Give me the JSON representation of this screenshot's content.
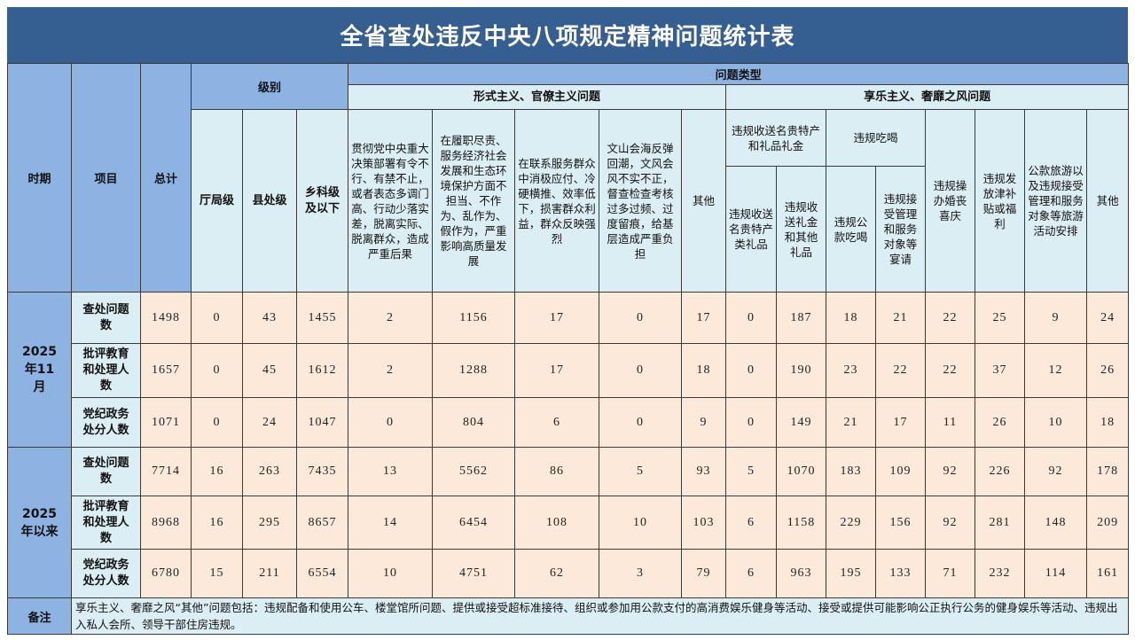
{
  "title": "全省查处违反中央八项规定精神问题统计表",
  "colors": {
    "title_bg": "#365f91",
    "header_bg": "#8db3e2",
    "subheader_bg": "#dbeef4",
    "cell_bg": "#fde9d9"
  },
  "header": {
    "period": "时期",
    "item": "项目",
    "total": "总计",
    "level": "级别",
    "level_cols": [
      "厅局级",
      "县处级",
      "乡科级及以下"
    ],
    "problem_type": "问题类型",
    "formalism": "形式主义、官僚主义问题",
    "formalism_cols": [
      "贯彻党中央重大决策部署有令不行、有禁不止，或者表态多调门高、行动少落实差，脱离实际、脱离群众，造成严重后果",
      "在履职尽责、服务经济社会发展和生态环境保护方面不担当、不作为、乱作为、假作为，严重影响高质量发展",
      "在联系服务群众中消极应付、冷硬横推、效率低下，损害群众利益，群众反映强烈",
      "文山会海反弹回潮，文风会风不实不正，督查检查考核过多过频、过度留痕，给基层造成严重负担",
      "其他"
    ],
    "hedonism": "享乐主义、奢靡之风问题",
    "gifts_group": "违规收送名贵特产和礼品礼金",
    "gifts_cols": [
      "违规收送名贵特产类礼品",
      "违规收送礼金和其他礼品"
    ],
    "dining_group": "违规吃喝",
    "dining_cols": [
      "违规公款吃喝",
      "违规接受管理和服务对象等宴请"
    ],
    "other_hedonism_cols": [
      "违规操办婚丧喜庆",
      "违规发放津补贴或福利",
      "公款旅游以及违规接受管理和服务对象等旅游活动安排",
      "其他"
    ]
  },
  "periods": [
    {
      "label": "2025年11月",
      "rows": [
        {
          "item": "查处问题数",
          "values": [
            "1498",
            "0",
            "43",
            "1455",
            "2",
            "1156",
            "17",
            "0",
            "17",
            "0",
            "187",
            "18",
            "21",
            "22",
            "25",
            "9",
            "24"
          ]
        },
        {
          "item": "批评教育和处理人数",
          "values": [
            "1657",
            "0",
            "45",
            "1612",
            "2",
            "1288",
            "17",
            "0",
            "18",
            "0",
            "190",
            "23",
            "22",
            "22",
            "37",
            "12",
            "26"
          ]
        },
        {
          "item": "党纪政务处分人数",
          "values": [
            "1071",
            "0",
            "24",
            "1047",
            "0",
            "804",
            "6",
            "0",
            "9",
            "0",
            "149",
            "21",
            "17",
            "11",
            "26",
            "10",
            "18"
          ]
        }
      ]
    },
    {
      "label": "2025年以来",
      "rows": [
        {
          "item": "查处问题数",
          "values": [
            "7714",
            "16",
            "263",
            "7435",
            "13",
            "5562",
            "86",
            "5",
            "93",
            "5",
            "1070",
            "183",
            "109",
            "92",
            "226",
            "92",
            "178"
          ]
        },
        {
          "item": "批评教育和处理人数",
          "values": [
            "8968",
            "16",
            "295",
            "8657",
            "14",
            "6454",
            "108",
            "10",
            "103",
            "6",
            "1158",
            "229",
            "156",
            "92",
            "281",
            "148",
            "209"
          ]
        },
        {
          "item": "党纪政务处分人数",
          "values": [
            "6780",
            "15",
            "211",
            "6554",
            "10",
            "4751",
            "62",
            "3",
            "79",
            "6",
            "963",
            "195",
            "133",
            "71",
            "232",
            "114",
            "161"
          ]
        }
      ]
    }
  ],
  "note": {
    "label": "备注",
    "text": "享乐主义、奢靡之风“其他”问题包括：违规配备和使用公车、楼堂馆所问题、提供或接受超标准接待、组织或参加用公款支付的高消费娱乐健身等活动、接受或提供可能影响公正执行公务的健身娱乐等活动、违规出入私人会所、领导干部住房违规。"
  }
}
